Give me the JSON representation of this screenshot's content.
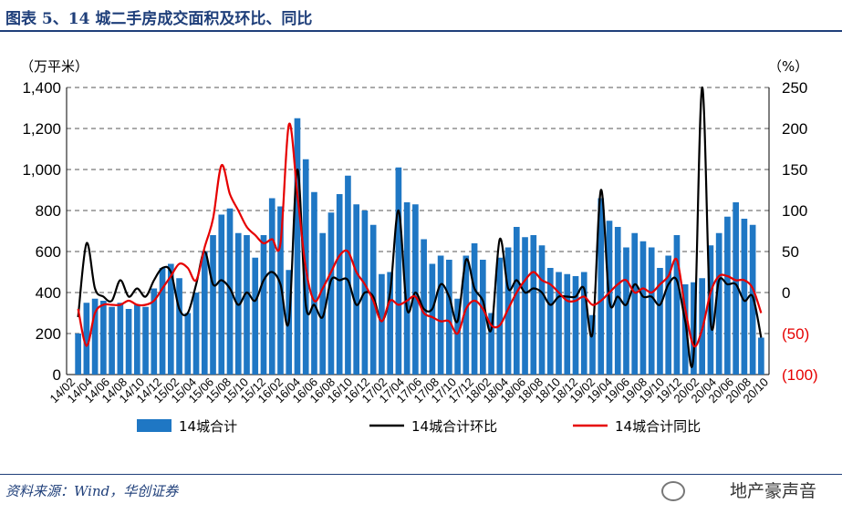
{
  "header": {
    "title": "图表 5、14 城二手房成交面积及环比、同比"
  },
  "footer": {
    "source": "资料来源：Wind，华创证券",
    "watermark": "地产豪声音"
  },
  "chart_data": {
    "type": "bar",
    "left_unit": "（万平米）",
    "right_unit": "（%）",
    "left_axis": {
      "range": [
        0,
        1400
      ],
      "ticks": [
        0,
        200,
        400,
        600,
        800,
        1000,
        1200,
        1400
      ],
      "tick_labels": [
        "0",
        "200",
        "400",
        "600",
        "800",
        "1,000",
        "1,200",
        "1,400"
      ]
    },
    "right_axis": {
      "range": [
        -100,
        250
      ],
      "ticks": [
        -100,
        -50,
        0,
        50,
        100,
        150,
        200,
        250
      ],
      "tick_labels": [
        "(100)",
        "(50)",
        "0",
        "50",
        "100",
        "150",
        "200",
        "250"
      ]
    },
    "grid": true,
    "legend_position": "bottom",
    "x_tick_labels": [
      "14/02",
      "14/04",
      "14/06",
      "14/08",
      "14/10",
      "14/12",
      "15/02",
      "15/04",
      "15/06",
      "15/08",
      "15/10",
      "15/12",
      "16/02",
      "16/04",
      "16/06",
      "16/08",
      "16/10",
      "16/12",
      "17/02",
      "17/04",
      "17/06",
      "17/08",
      "17/10",
      "17/12",
      "18/02",
      "18/04",
      "18/06",
      "18/08",
      "18/10",
      "18/12",
      "19/02",
      "19/04",
      "19/06",
      "19/08",
      "19/10",
      "19/12",
      "20/02",
      "20/04",
      "20/06",
      "20/08",
      "20/10"
    ],
    "series": [
      {
        "name": "14城合计",
        "type": "bar",
        "axis": "left",
        "color": "#1f77c4",
        "values": [
          200,
          350,
          370,
          360,
          330,
          350,
          320,
          340,
          330,
          420,
          520,
          540,
          470,
          300,
          400,
          600,
          680,
          780,
          810,
          690,
          680,
          570,
          680,
          860,
          820,
          510,
          1250,
          1050,
          890,
          690,
          790,
          880,
          970,
          830,
          800,
          730,
          490,
          500,
          1010,
          840,
          830,
          660,
          540,
          580,
          560,
          370,
          580,
          640,
          560,
          300,
          570,
          620,
          720,
          670,
          680,
          630,
          520,
          500,
          490,
          480,
          500,
          290,
          860,
          750,
          720,
          620,
          690,
          650,
          620,
          520,
          580,
          680,
          440,
          450,
          470,
          630,
          690,
          770,
          840,
          760,
          730,
          180
        ]
      },
      {
        "name": "14城合计环比",
        "type": "line",
        "axis": "right",
        "color": "#000000",
        "values": [
          -30,
          60,
          5,
          -5,
          -10,
          15,
          -5,
          5,
          -5,
          15,
          30,
          25,
          -20,
          -25,
          10,
          50,
          10,
          15,
          5,
          -15,
          0,
          -10,
          15,
          25,
          10,
          -35,
          150,
          -15,
          -15,
          -30,
          15,
          15,
          15,
          -15,
          0,
          -5,
          -35,
          0,
          100,
          -20,
          0,
          -20,
          -20,
          10,
          -5,
          -35,
          40,
          5,
          -10,
          -45,
          65,
          5,
          15,
          0,
          5,
          0,
          -15,
          -5,
          -5,
          -5,
          5,
          -50,
          125,
          -10,
          -5,
          -15,
          10,
          -5,
          -5,
          -15,
          10,
          15,
          -35,
          -75,
          250,
          -35,
          15,
          10,
          10,
          -10,
          -5,
          -55
        ]
      },
      {
        "name": "14城合计同比",
        "type": "line",
        "axis": "right",
        "color": "#e60000",
        "values": [
          -20,
          -65,
          -25,
          -15,
          -15,
          -15,
          -10,
          -15,
          -15,
          -10,
          5,
          20,
          35,
          30,
          15,
          55,
          90,
          155,
          120,
          100,
          80,
          70,
          60,
          65,
          60,
          205,
          120,
          30,
          -10,
          5,
          25,
          45,
          50,
          25,
          10,
          -10,
          -35,
          -10,
          -15,
          -10,
          -5,
          -25,
          -30,
          -35,
          -35,
          -50,
          -20,
          -10,
          -20,
          -40,
          -40,
          -20,
          0,
          15,
          25,
          15,
          10,
          0,
          -10,
          -10,
          -5,
          -15,
          -10,
          0,
          10,
          15,
          0,
          5,
          0,
          10,
          20,
          40,
          -20,
          -65,
          -45,
          0,
          20,
          20,
          15,
          15,
          5,
          -25
        ]
      }
    ]
  }
}
